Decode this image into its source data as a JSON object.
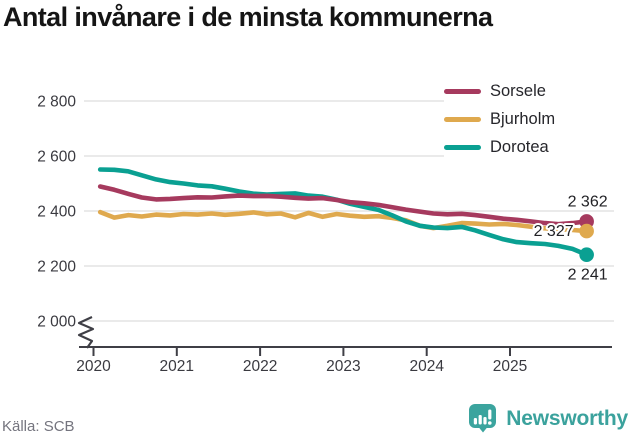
{
  "title": "Antal invånare i de minsta kommunerna",
  "source": "Källa: SCB",
  "brand": {
    "name": "Newsworthy",
    "color": "#3ba29d"
  },
  "colors": {
    "grid": "#e4e4e4",
    "axis": "#3f3f46",
    "tick_text": "#3a3a40",
    "label_text": "#222226",
    "title_text": "#151515",
    "source_text": "#74747e"
  },
  "chart_data": {
    "type": "line",
    "title": "Antal invånare i de minsta kommunerna",
    "xlabel": "",
    "ylabel": "",
    "grid": "horizontal",
    "legend_position": "top-right",
    "axis_break": true,
    "ylim": [
      2000,
      2800
    ],
    "y_ticks": [
      {
        "value": 2800,
        "label": "2 800"
      },
      {
        "value": 2600,
        "label": "2 600"
      },
      {
        "value": 2400,
        "label": "2 400"
      },
      {
        "value": 2200,
        "label": "2 200"
      },
      {
        "value": 2000,
        "label": "2 000"
      }
    ],
    "x_ticks": [
      {
        "value": 2020,
        "label": "2020"
      },
      {
        "value": 2021,
        "label": "2021"
      },
      {
        "value": 2022,
        "label": "2022"
      },
      {
        "value": 2023,
        "label": "2023"
      },
      {
        "value": 2024,
        "label": "2024"
      },
      {
        "value": 2025,
        "label": "2025"
      }
    ],
    "x": [
      2020.08,
      2020.25,
      2020.42,
      2020.58,
      2020.75,
      2020.92,
      2021.08,
      2021.25,
      2021.42,
      2021.58,
      2021.75,
      2021.92,
      2022.08,
      2022.25,
      2022.42,
      2022.58,
      2022.75,
      2022.92,
      2023.08,
      2023.25,
      2023.42,
      2023.58,
      2023.75,
      2023.92,
      2024.08,
      2024.25,
      2024.42,
      2024.58,
      2024.75,
      2024.92,
      2025.08,
      2025.25,
      2025.42,
      2025.58,
      2025.75,
      2025.92
    ],
    "series": [
      {
        "name": "Sorsele",
        "color": "#a63a5e",
        "end_value": 2362,
        "end_label": "2 362",
        "values": [
          2489,
          2477,
          2462,
          2449,
          2442,
          2444,
          2447,
          2450,
          2449,
          2453,
          2456,
          2454,
          2455,
          2452,
          2448,
          2445,
          2447,
          2440,
          2432,
          2428,
          2422,
          2414,
          2405,
          2398,
          2391,
          2388,
          2390,
          2385,
          2379,
          2372,
          2368,
          2362,
          2356,
          2352,
          2356,
          2362
        ]
      },
      {
        "name": "Bjurholm",
        "color": "#dfa94e",
        "end_value": 2327,
        "end_label": "2 327",
        "values": [
          2396,
          2376,
          2385,
          2380,
          2387,
          2384,
          2389,
          2387,
          2391,
          2386,
          2390,
          2395,
          2388,
          2391,
          2377,
          2393,
          2379,
          2389,
          2383,
          2379,
          2381,
          2375,
          2366,
          2346,
          2338,
          2346,
          2356,
          2354,
          2351,
          2353,
          2349,
          2343,
          2337,
          2334,
          2331,
          2327
        ]
      },
      {
        "name": "Dorotea",
        "color": "#0aa092",
        "end_value": 2241,
        "end_label": "2 241",
        "values": [
          2551,
          2550,
          2544,
          2530,
          2515,
          2505,
          2500,
          2493,
          2490,
          2481,
          2471,
          2463,
          2460,
          2462,
          2464,
          2456,
          2452,
          2441,
          2426,
          2415,
          2404,
          2385,
          2362,
          2346,
          2340,
          2338,
          2342,
          2330,
          2313,
          2297,
          2287,
          2283,
          2280,
          2273,
          2262,
          2241
        ]
      }
    ]
  }
}
